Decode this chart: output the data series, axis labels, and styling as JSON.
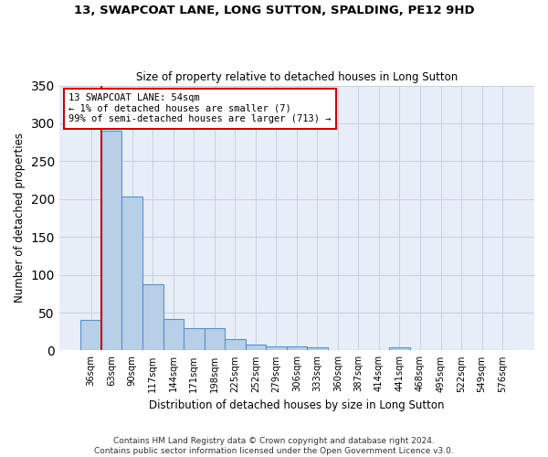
{
  "title1": "13, SWAPCOAT LANE, LONG SUTTON, SPALDING, PE12 9HD",
  "title2": "Size of property relative to detached houses in Long Sutton",
  "xlabel": "Distribution of detached houses by size in Long Sutton",
  "ylabel": "Number of detached properties",
  "categories": [
    "36sqm",
    "63sqm",
    "90sqm",
    "117sqm",
    "144sqm",
    "171sqm",
    "198sqm",
    "225sqm",
    "252sqm",
    "279sqm",
    "306sqm",
    "333sqm",
    "360sqm",
    "387sqm",
    "414sqm",
    "441sqm",
    "468sqm",
    "495sqm",
    "522sqm",
    "549sqm",
    "576sqm"
  ],
  "values": [
    40,
    290,
    203,
    87,
    42,
    30,
    30,
    15,
    8,
    5,
    5,
    4,
    0,
    0,
    0,
    4,
    0,
    0,
    0,
    0,
    0
  ],
  "bar_color": "#b8cfe8",
  "bar_edge_color": "#5b8fc9",
  "annotation_text_line1": "13 SWAPCOAT LANE: 54sqm",
  "annotation_text_line2": "← 1% of detached houses are smaller (7)",
  "annotation_text_line3": "99% of semi-detached houses are larger (713) →",
  "red_line_x": 0.5,
  "background_color": "#e8eef8",
  "ylim": [
    0,
    350
  ],
  "yticks": [
    0,
    50,
    100,
    150,
    200,
    250,
    300,
    350
  ],
  "footer_line1": "Contains HM Land Registry data © Crown copyright and database right 2024.",
  "footer_line2": "Contains public sector information licensed under the Open Government Licence v3.0."
}
